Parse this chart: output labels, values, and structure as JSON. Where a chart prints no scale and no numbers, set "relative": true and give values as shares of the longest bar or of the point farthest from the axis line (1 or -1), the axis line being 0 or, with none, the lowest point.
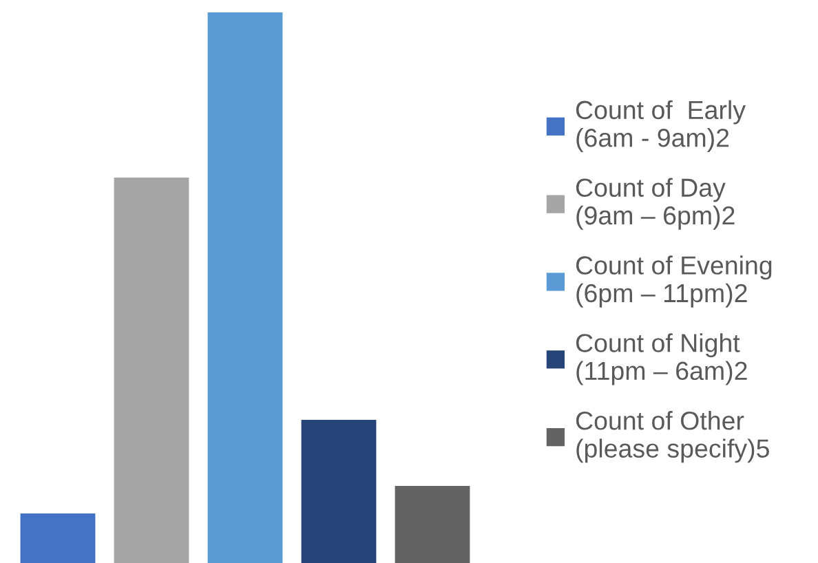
{
  "chart_data": {
    "type": "bar",
    "relative": true,
    "categories": [
      null
    ],
    "series": [
      {
        "name": "Count of  Early\n(6am - 9am)2",
        "color": "#4472c4",
        "values": [
          0.09
        ]
      },
      {
        "name": "Count of Day\n(9am – 6pm)2",
        "color": "#a5a5a5",
        "values": [
          0.7
        ]
      },
      {
        "name": "Count of Evening\n(6pm – 11pm)2",
        "color": "#5b9bd5",
        "values": [
          1
        ]
      },
      {
        "name": "Count of Night\n(11pm – 6am)2",
        "color": "#264478",
        "values": [
          0.26
        ]
      },
      {
        "name": "Count of Other\n(please specify)5",
        "color": "#636363",
        "values": [
          0.14
        ]
      }
    ],
    "legend": "right"
  }
}
